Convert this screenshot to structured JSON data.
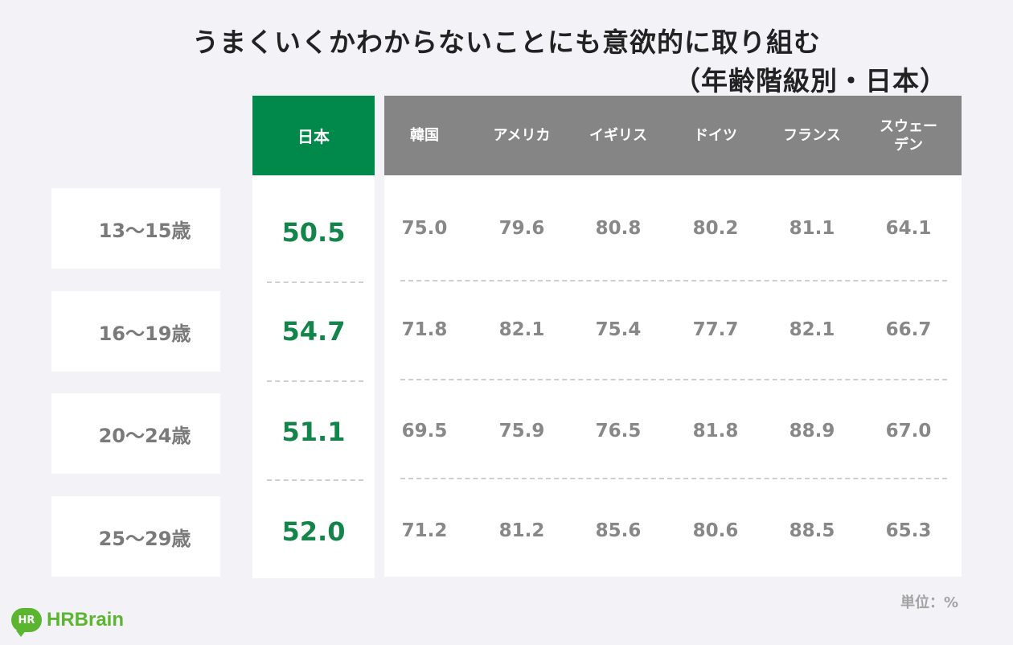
{
  "chart_data": {
    "type": "table",
    "title": "うまくいくかわからないことにも意欲的に取り組む",
    "subtitle": "（年齢階級別・日本）",
    "columns": [
      "日本",
      "韓国",
      "アメリカ",
      "イギリス",
      "ドイツ",
      "フランス",
      "スウェーデン"
    ],
    "column_display": [
      "日本",
      "韓国",
      "アメリカ",
      "イギリス",
      "ドイツ",
      "フランス",
      "スウェー\nデン"
    ],
    "rows": [
      {
        "label": "13〜15歳",
        "values": [
          50.5,
          75.0,
          79.6,
          80.8,
          80.2,
          81.1,
          64.1
        ]
      },
      {
        "label": "16〜19歳",
        "values": [
          54.7,
          71.8,
          82.1,
          75.4,
          77.7,
          82.1,
          66.7
        ]
      },
      {
        "label": "20〜24歳",
        "values": [
          51.1,
          69.5,
          75.9,
          76.5,
          81.8,
          88.9,
          67.0
        ]
      },
      {
        "label": "25〜29歳",
        "values": [
          52.0,
          71.2,
          81.2,
          85.6,
          80.6,
          88.5,
          65.3
        ]
      }
    ],
    "unit": "単位：%",
    "highlight_color": "#00894b",
    "header_color": "#858585"
  },
  "logo": {
    "badge": "HR",
    "text": "HRBrain",
    "color": "#5cb531"
  }
}
